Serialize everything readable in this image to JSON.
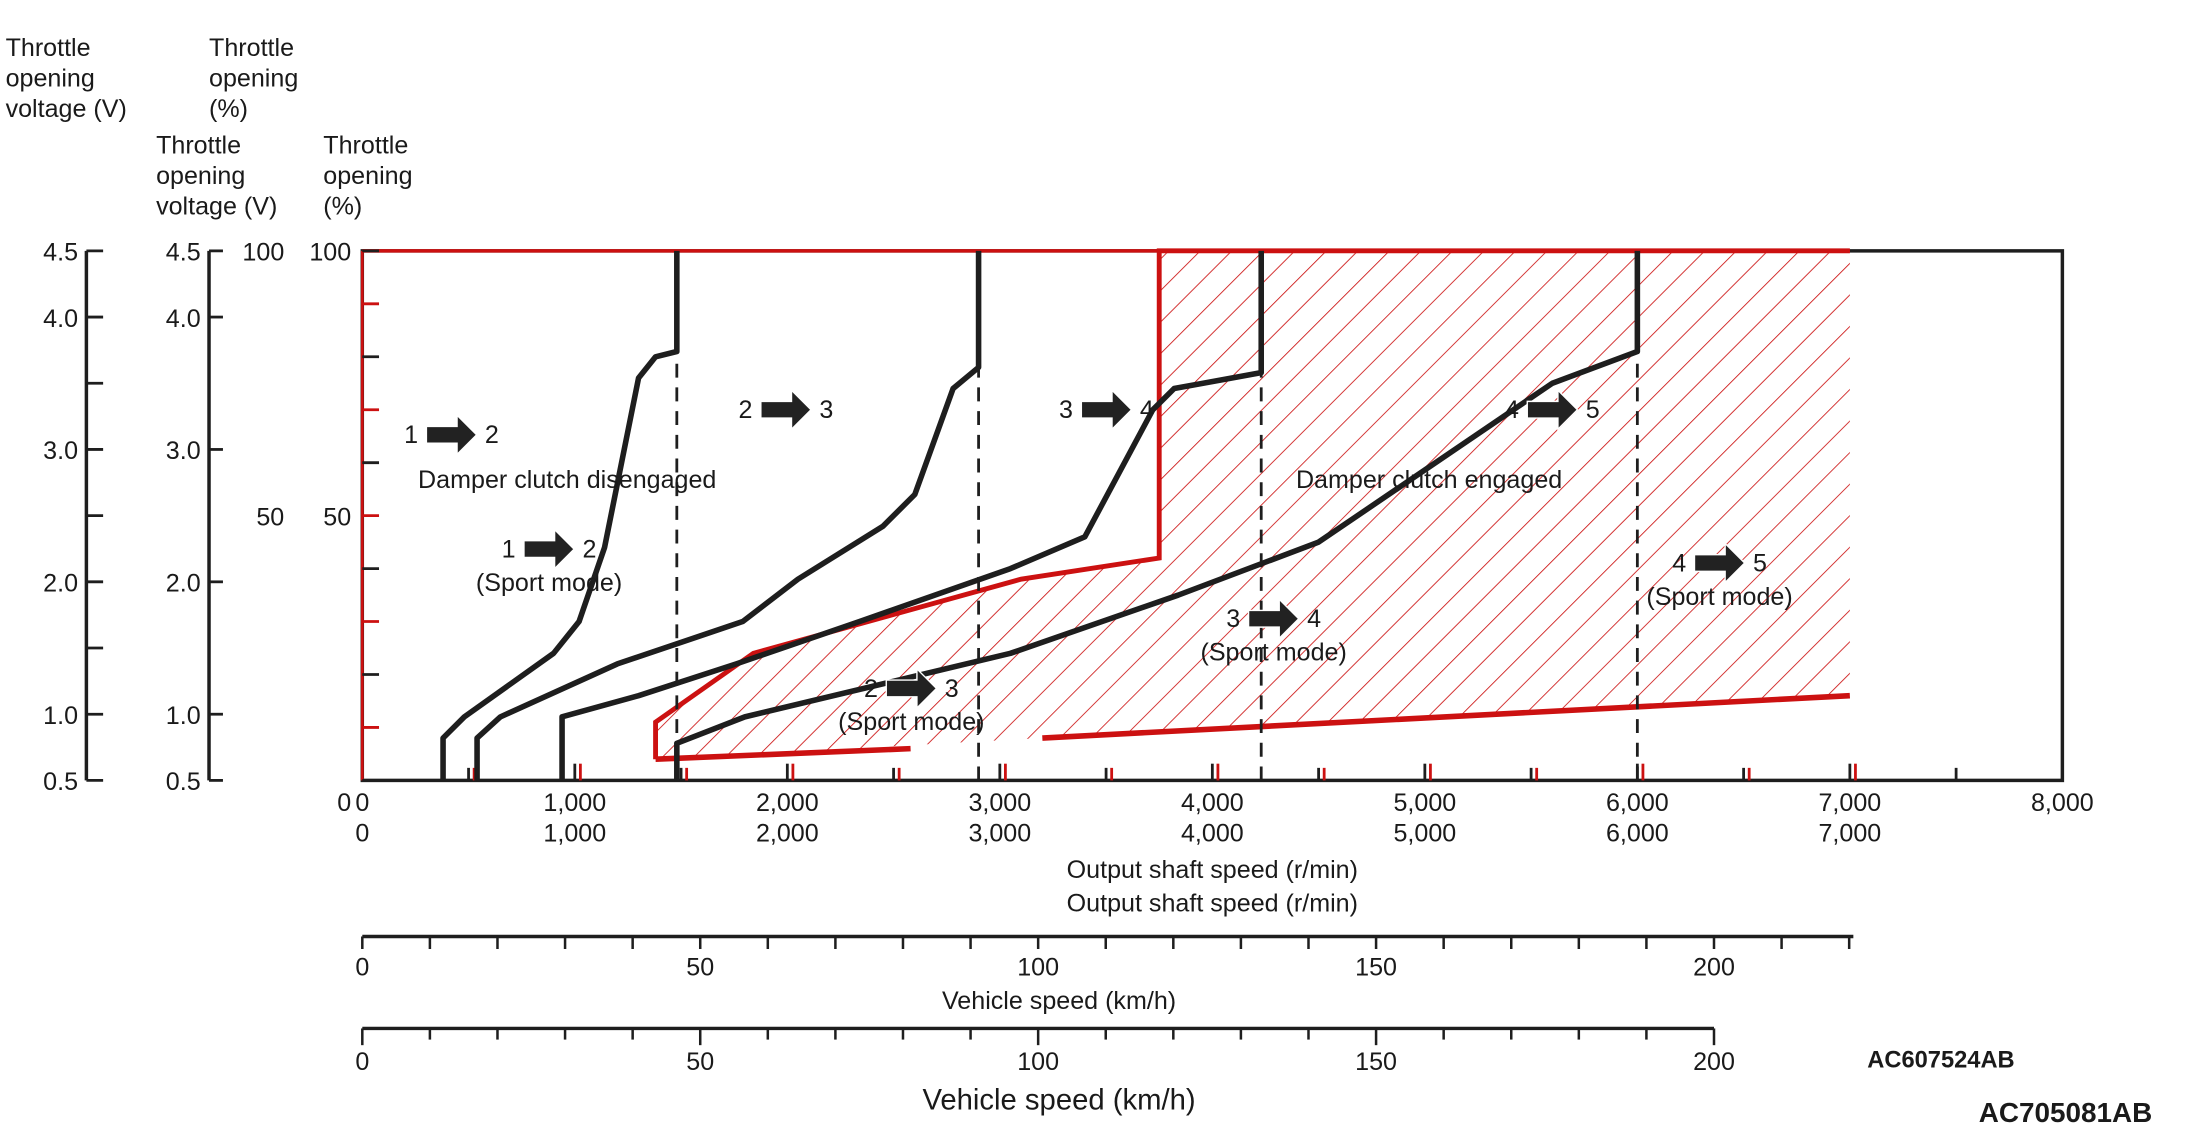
{
  "chart_data": {
    "type": "line",
    "title": "",
    "colors": {
      "shift_line": "#1e1e1e",
      "damper_region": "#cc1111",
      "axis": "#1e1e1e"
    },
    "xlabel": "Output shaft speed (r/min)",
    "xlabel_overlay": "Output shaft speed (r/min)",
    "xlim": [
      0,
      8000
    ],
    "x_ticks": [
      0,
      1000,
      2000,
      3000,
      4000,
      5000,
      6000,
      7000,
      8000
    ],
    "x_tick_labels": [
      "0",
      "1,000",
      "2,000",
      "3,000",
      "4,000",
      "5,000",
      "6,000",
      "7,000",
      "8,000"
    ],
    "x_tick_labels_overlay": [
      "0",
      "1,000",
      "2,000",
      "3,000",
      "4,000",
      "5,000",
      "6,000",
      "7,000"
    ],
    "ylim": [
      0,
      100
    ],
    "y_axis_percent": {
      "label_lines": [
        "Throttle",
        "opening",
        "(%)"
      ],
      "overlay_label_lines": [
        "Throttle",
        "opening",
        "(%)"
      ],
      "ticks": [
        0,
        50,
        100
      ],
      "tick_labels": [
        "0",
        "50",
        "100"
      ]
    },
    "y_axis_voltage": {
      "label_lines": [
        "Throttle",
        "opening",
        "voltage (V)"
      ],
      "ticks": [
        0.5,
        1.0,
        2.0,
        3.0,
        4.0,
        4.5
      ],
      "tick_labels": [
        "0.5",
        "1.0",
        "2.0",
        "3.0",
        "4.0",
        "4.5"
      ]
    },
    "y_axis_voltage_outer": {
      "label_lines": [
        "Throttle",
        "opening",
        "voltage (V)"
      ],
      "ticks": [
        0.5,
        1.0,
        2.0,
        3.0,
        4.0,
        4.5
      ],
      "tick_labels": [
        "0.5",
        "1.0",
        "2.0",
        "3.0",
        "4.0",
        "4.5"
      ]
    },
    "series": [
      {
        "name": "1-2 upshift",
        "points": [
          [
            380,
            0
          ],
          [
            380,
            8
          ],
          [
            480,
            12
          ],
          [
            900,
            24
          ],
          [
            1020,
            30
          ],
          [
            1140,
            44
          ],
          [
            1220,
            60
          ],
          [
            1300,
            76
          ],
          [
            1380,
            80
          ],
          [
            1480,
            81
          ],
          [
            1480,
            100
          ]
        ]
      },
      {
        "name": "2-3 upshift",
        "points": [
          [
            540,
            0
          ],
          [
            540,
            8
          ],
          [
            650,
            12
          ],
          [
            1200,
            22
          ],
          [
            1790,
            30
          ],
          [
            2050,
            38
          ],
          [
            2450,
            48
          ],
          [
            2600,
            54
          ],
          [
            2780,
            74
          ],
          [
            2900,
            78
          ],
          [
            2900,
            100
          ]
        ]
      },
      {
        "name": "3-4 upshift",
        "points": [
          [
            940,
            0
          ],
          [
            940,
            12
          ],
          [
            1300,
            16
          ],
          [
            1760,
            22
          ],
          [
            2340,
            30
          ],
          [
            3050,
            40
          ],
          [
            3400,
            46
          ],
          [
            3720,
            70
          ],
          [
            3820,
            74
          ],
          [
            4230,
            77
          ],
          [
            4230,
            100
          ]
        ]
      },
      {
        "name": "4-5 upshift",
        "points": [
          [
            1480,
            0
          ],
          [
            1480,
            7
          ],
          [
            1800,
            12
          ],
          [
            3050,
            24
          ],
          [
            3840,
            35
          ],
          [
            4500,
            45
          ],
          [
            5600,
            75
          ],
          [
            6000,
            81
          ],
          [
            6000,
            100
          ]
        ]
      }
    ],
    "sport_mode_shift_speeds": [
      1480,
      2900,
      4230,
      6000
    ],
    "damper_region": {
      "name": "Damper clutch engaged",
      "outline": [
        [
          1380,
          4
        ],
        [
          1380,
          11
        ],
        [
          1840,
          24
        ],
        [
          3100,
          38
        ],
        [
          3750,
          42
        ],
        [
          3750,
          100
        ],
        [
          7000,
          100
        ],
        [
          7000,
          16
        ],
        [
          3200,
          8
        ]
      ],
      "lower_segment_a": [
        [
          1380,
          4
        ],
        [
          2580,
          6
        ]
      ],
      "lower_segment_b": [
        [
          3200,
          8
        ],
        [
          7000,
          16
        ]
      ]
    },
    "annotations": {
      "shift_12": {
        "from": "1",
        "to": "2"
      },
      "shift_23": {
        "from": "2",
        "to": "3"
      },
      "shift_34": {
        "from": "3",
        "to": "4"
      },
      "shift_45": {
        "from": "4",
        "to": "5"
      },
      "sport_12": {
        "from": "1",
        "to": "2",
        "label": "(Sport mode)"
      },
      "sport_23": {
        "from": "2",
        "to": "3",
        "label": "(Sport mode)"
      },
      "sport_34": {
        "from": "3",
        "to": "4",
        "label": "(Sport mode)"
      },
      "sport_45": {
        "from": "4",
        "to": "5",
        "label": "(Sport mode)"
      },
      "damper_disengaged": "Damper clutch disengaged",
      "damper_engaged": "Damper clutch engaged"
    },
    "vehicle_speed_axis": {
      "label": "Vehicle speed (km/h)",
      "label_overlay": "Vehicle speed (km/h)",
      "ticks": [
        0,
        50,
        100,
        150,
        200
      ],
      "tick_labels": [
        "0",
        "50",
        "100",
        "150",
        "200"
      ],
      "tick_labels_overlay": [
        "0",
        "50",
        "100",
        "150",
        "200"
      ]
    }
  },
  "figure_ids": [
    "AC607524AB",
    "AC705081AB"
  ]
}
